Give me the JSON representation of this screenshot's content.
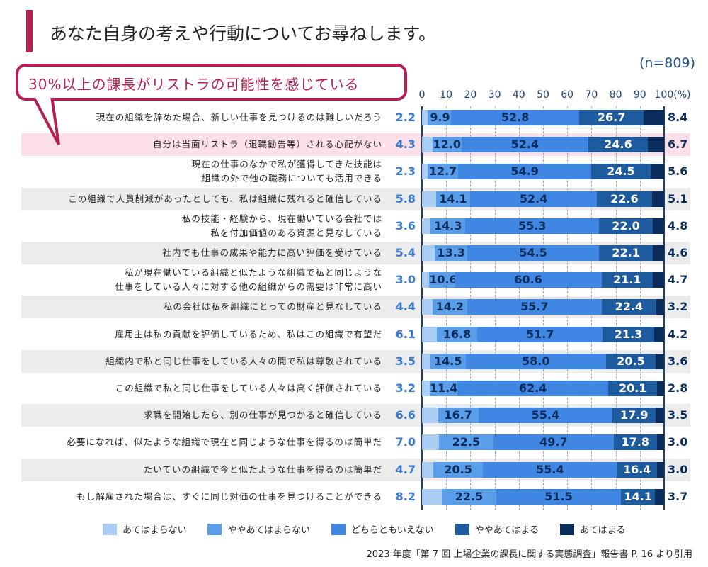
{
  "header": {
    "title": "あなた自身の考えや行動についてお尋ねします。",
    "sample": "(n=809)"
  },
  "callout": {
    "text": "30%以上の課長がリストラの可能性を感じている"
  },
  "footer": {
    "source": "2023 年度「第 7 回 上場企業の課長に関する実態調査」報告書 P. 16 より引用"
  },
  "chart_data": {
    "type": "bar",
    "orientation": "horizontal",
    "stacked": true,
    "xlim": [
      0,
      100
    ],
    "x_ticks": [
      "0",
      "10",
      "20",
      "30",
      "40",
      "50",
      "60",
      "70",
      "80",
      "90",
      "100(%)"
    ],
    "grid": true,
    "legend_position": "bottom",
    "highlight_row": 1,
    "highlight_color": "#fce0e8",
    "categories": [
      "現在の組織を辞めた場合、新しい仕事を見つけるのは難しいだろう",
      "自分は当面リストラ（退職勧告等）される心配がない",
      "現在の仕事のなかで私が獲得してきた技能は\n組織の外で他の職務についても活用できる",
      "この組織で人員削減があったとしても、私は組織に残れると確信している",
      "私の技能・経験から、現在働いている会社では\n私を付加価値のある資源と見なしている",
      "社内でも仕事の成果や能力に高い評価を受けている",
      "私が現在働いている組織と似たような組織で私と同じような\n仕事をしている人々に対する他の組織からの需要は非常に高い",
      "私の会社は私を組織にとっての財産と見なしている",
      "雇用主は私の貢献を評価しているため、私はこの組織で有望だ",
      "組織内で私と同じ仕事をしている人々の間で私は尊敬されている",
      "この組織で私と同じ仕事をしている人々は高く評価されている",
      "求職を開始したら、別の仕事が見つかると確信している",
      "必要になれば、似たような組織で現在と同じような仕事を得るのは簡単だ",
      "たいていの組織で今と似たような仕事を得るのは簡単だ",
      "もし解雇された場合は、すぐに同じ対価の仕事を見つけることができる"
    ],
    "series": [
      {
        "name": "あてはまらない",
        "color": "#a9cdf3",
        "label_color": "#3a7bd5",
        "values": [
          2.2,
          4.3,
          2.3,
          5.8,
          3.6,
          5.4,
          3.0,
          4.4,
          6.1,
          3.5,
          3.2,
          6.6,
          7.0,
          4.7,
          8.2
        ]
      },
      {
        "name": "ややあてはまらない",
        "color": "#5a9eea",
        "label_color": "#0b2d5c",
        "values": [
          9.9,
          12.0,
          12.7,
          14.1,
          14.3,
          13.3,
          10.6,
          14.2,
          16.8,
          14.5,
          11.4,
          16.7,
          22.5,
          20.5,
          22.5
        ]
      },
      {
        "name": "どちらともいえない",
        "color": "#3f87e3",
        "label_color": "#0b2d5c",
        "values": [
          52.8,
          52.4,
          54.9,
          52.4,
          55.3,
          54.5,
          60.6,
          55.7,
          51.7,
          58.0,
          62.4,
          55.4,
          49.7,
          55.4,
          51.5
        ]
      },
      {
        "name": "ややあてはまる",
        "color": "#1e5a9e",
        "label_color": "#ffffff",
        "values": [
          26.7,
          24.6,
          24.5,
          22.6,
          22.0,
          22.1,
          21.1,
          22.4,
          21.3,
          20.5,
          20.1,
          17.9,
          17.8,
          16.4,
          14.1
        ]
      },
      {
        "name": "あてはまる",
        "color": "#0b2d5c",
        "label_color": "#0b2d5c",
        "values": [
          8.4,
          6.7,
          5.6,
          5.1,
          4.8,
          4.6,
          4.7,
          3.2,
          4.2,
          3.6,
          2.8,
          3.5,
          3.0,
          3.0,
          3.7
        ]
      }
    ]
  }
}
